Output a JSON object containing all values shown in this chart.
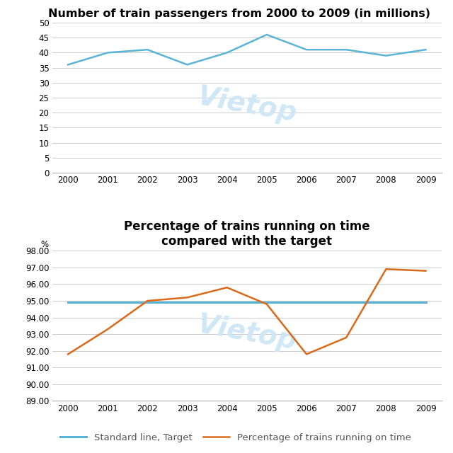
{
  "chart1": {
    "title": "Number of train passengers from 2000 to 2009 (in millions)",
    "years": [
      2000,
      2001,
      2002,
      2003,
      2004,
      2005,
      2006,
      2007,
      2008,
      2009
    ],
    "passengers": [
      36,
      40,
      41,
      36,
      40,
      46,
      41,
      41,
      39,
      41
    ],
    "line_color": "#5ab4d6",
    "ylim": [
      0,
      50
    ],
    "yticks": [
      0,
      5,
      10,
      15,
      20,
      25,
      30,
      35,
      40,
      45,
      50
    ]
  },
  "chart2": {
    "title": "Percentage of trains running on time\ncompared with the target",
    "years": [
      2000,
      2001,
      2002,
      2003,
      2004,
      2005,
      2006,
      2007,
      2008,
      2009
    ],
    "on_time": [
      91.8,
      93.3,
      95.0,
      95.2,
      95.8,
      94.8,
      91.8,
      92.8,
      96.9,
      96.8
    ],
    "target": 94.9,
    "line_color_ontime": "#d96a1a",
    "line_color_target": "#5ab4d6",
    "ylim": [
      89.0,
      98.0
    ],
    "yticks": [
      89.0,
      90.0,
      91.0,
      92.0,
      93.0,
      94.0,
      95.0,
      96.0,
      97.0,
      98.0
    ],
    "ylabel": "%",
    "legend_target": "Standard line, Target",
    "legend_ontime": "Percentage of trains running on time"
  },
  "background_color": "#ffffff",
  "watermark_color": "#d0e8f5",
  "title1_fontsize": 11.5,
  "title2_fontsize": 12,
  "axis_fontsize": 8.5,
  "legend_fontsize": 9.5
}
